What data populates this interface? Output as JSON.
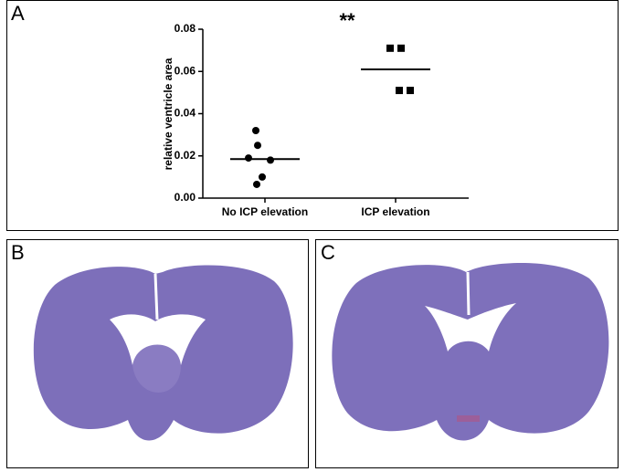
{
  "panels": [
    "A",
    "B",
    "C"
  ],
  "chart_data": {
    "type": "dotplot",
    "annotation": "**",
    "y_label": "relative ventricle area",
    "categories": [
      "No ICP elevation",
      "ICP elevation"
    ],
    "groups": [
      {
        "marker": "circle",
        "values": [
          0.032,
          0.025,
          0.019,
          0.018,
          0.01,
          0.0065
        ],
        "mean": 0.0185
      },
      {
        "marker": "square",
        "values": [
          0.071,
          0.071,
          0.051,
          0.051
        ],
        "mean": 0.061
      }
    ],
    "color": "#000000",
    "ylim": [
      0,
      0.08
    ],
    "yticks": [
      {
        "value": 0,
        "label": "0.00"
      },
      {
        "value": 0.02,
        "label": "0.02"
      },
      {
        "value": 0.04,
        "label": "0.04"
      },
      {
        "value": 0.06,
        "label": "0.06"
      },
      {
        "value": 0.08,
        "label": "0.08"
      }
    ]
  }
}
